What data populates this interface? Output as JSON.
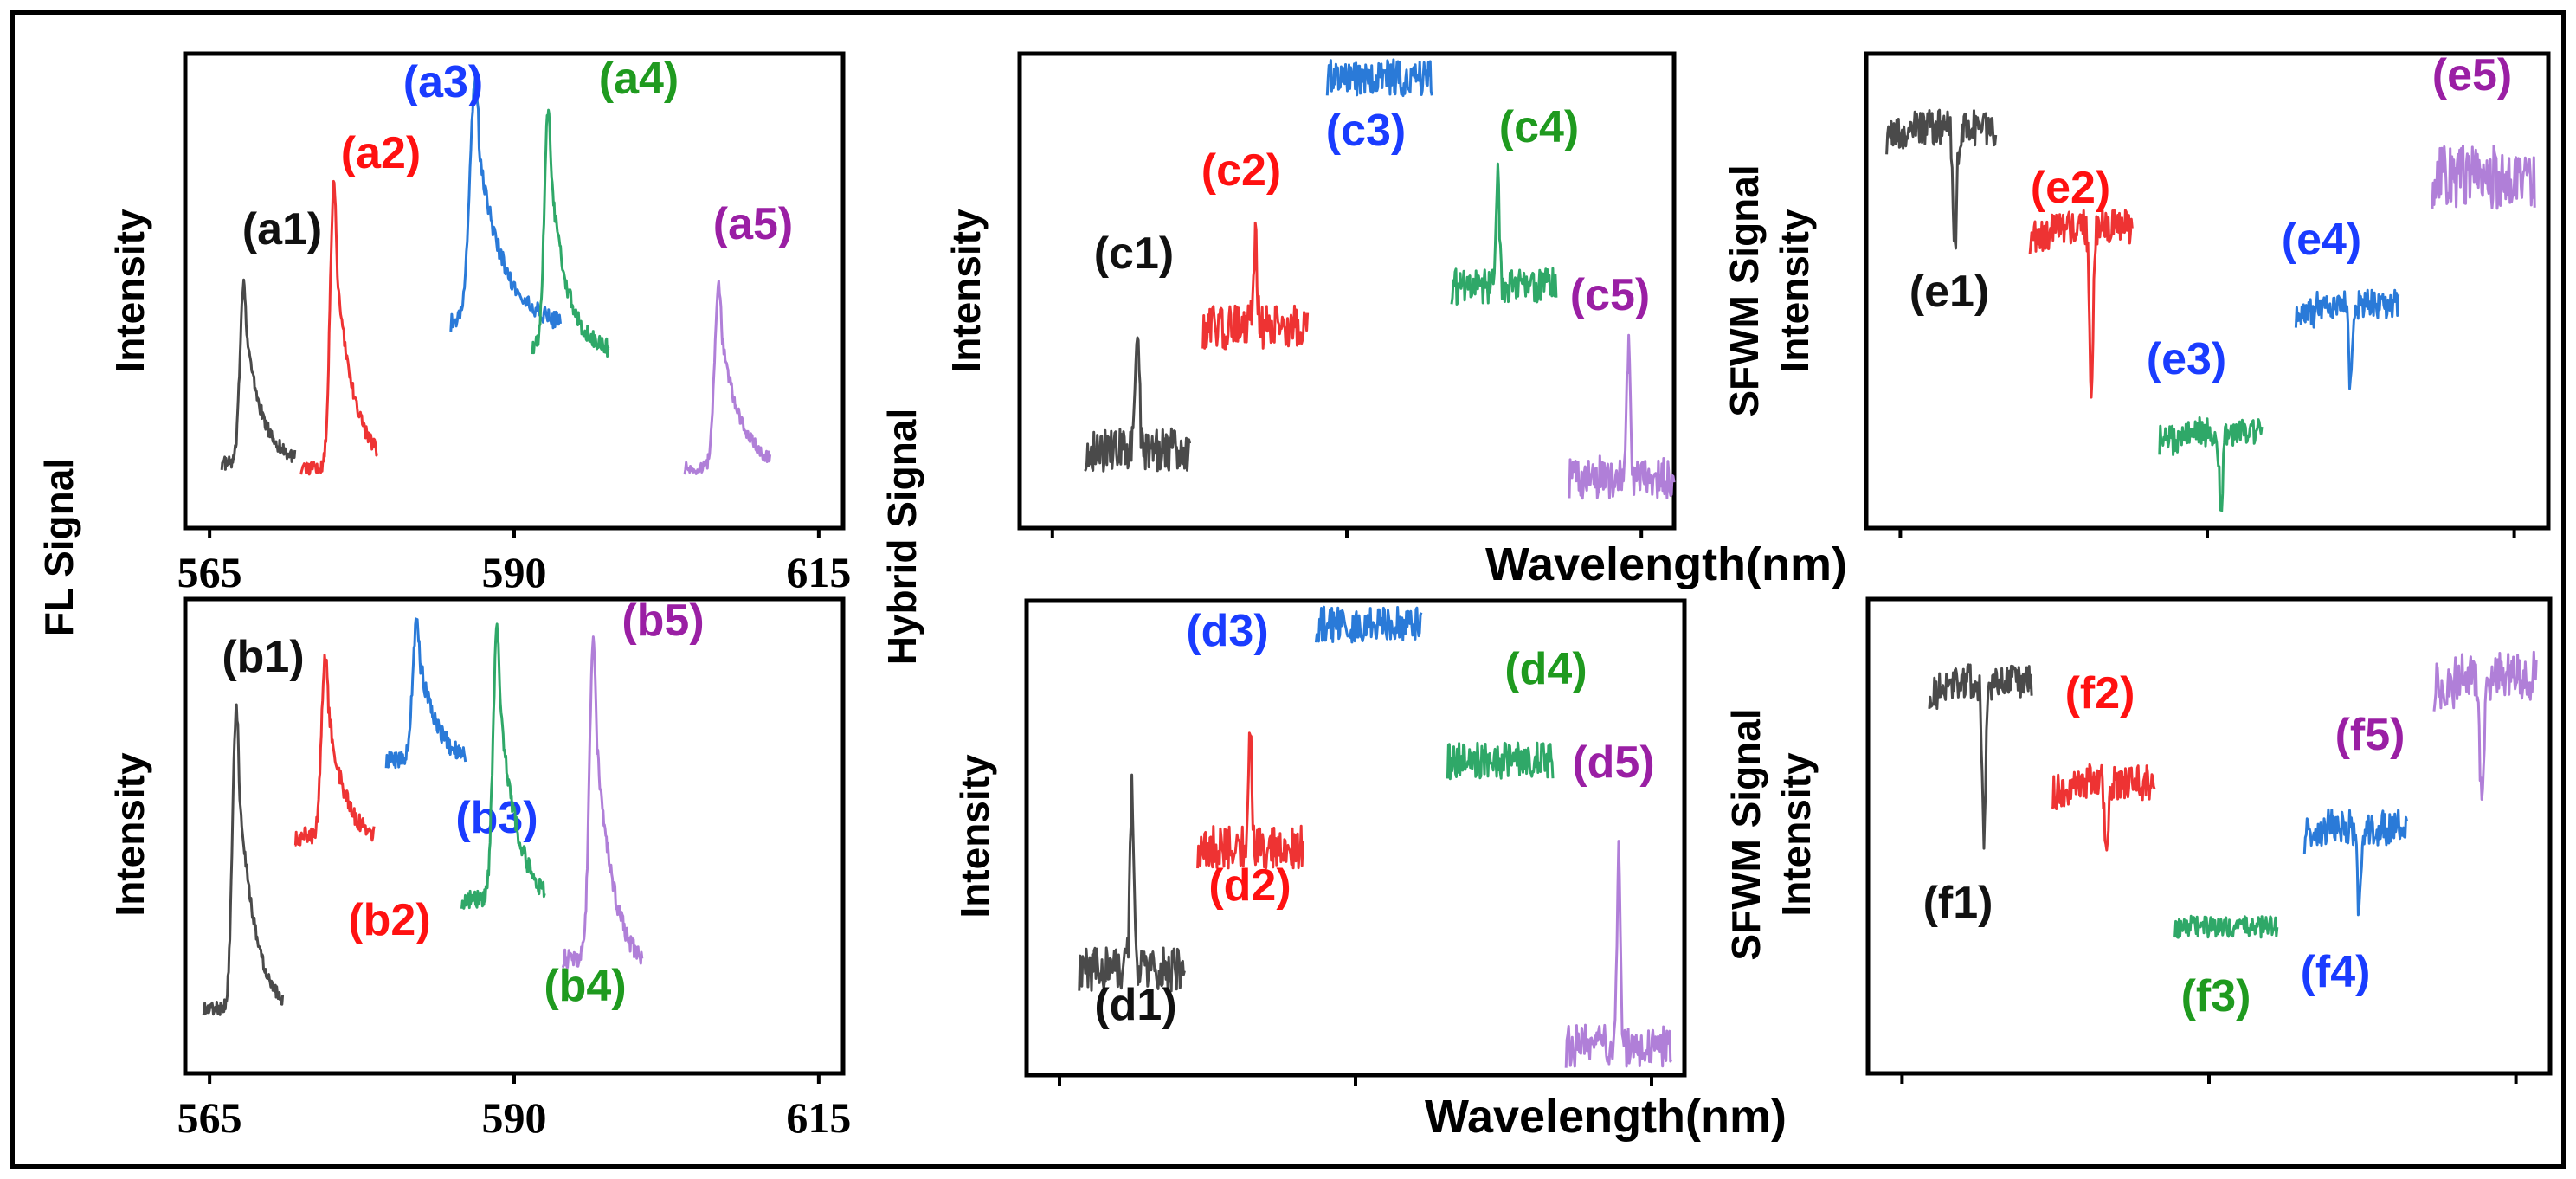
{
  "figure": {
    "fl_signal_label": "FL Signal",
    "hybrid_signal_label": "Hybrid Signal",
    "colors": {
      "black": "#4a4a4a",
      "red": "#ee3333",
      "blue": "#2a7ad8",
      "green": "#2fa868",
      "purple": "#b07fd8",
      "label_black": "#111111",
      "label_red": "#ff1111",
      "label_blue": "#1a3cff",
      "label_green": "#1f9a1f",
      "label_purple": "#9a1fa4"
    }
  },
  "chart_data": [
    {
      "id": "a",
      "type": "line",
      "ylabel": "Intensity",
      "xlabel": "",
      "xlim": [
        563,
        617
      ],
      "ylim": [
        0,
        1
      ],
      "xticks": [
        565,
        590,
        615
      ],
      "xtick_labels": [
        "565",
        "590",
        "615"
      ],
      "series": [
        {
          "name": "(a1)",
          "kind": "peak",
          "x_range": [
            566,
            572
          ],
          "peak_x": 567.8,
          "baseline": 0.12,
          "peak": 0.52,
          "tail": 0.12,
          "noise": 0.015,
          "label_color": "label_black",
          "color": "black"
        },
        {
          "name": "(a2)",
          "kind": "peak",
          "x_range": [
            572.5,
            578.8
          ],
          "peak_x": 575.2,
          "baseline": 0.11,
          "peak": 0.73,
          "tail": 0.11,
          "noise": 0.015,
          "label_color": "label_red",
          "color": "red"
        },
        {
          "name": "(a3)",
          "kind": "peak",
          "x_range": [
            584.8,
            593.8
          ],
          "peak_x": 586.8,
          "baseline": 0.43,
          "peak": 0.96,
          "tail": 0.42,
          "noise": 0.02,
          "label_color": "label_blue",
          "color": "blue"
        },
        {
          "name": "(a4)",
          "kind": "peak",
          "x_range": [
            591.5,
            597.8
          ],
          "peak_x": 592.8,
          "baseline": 0.38,
          "peak": 0.9,
          "tail": 0.36,
          "noise": 0.02,
          "label_color": "label_green",
          "color": "green"
        },
        {
          "name": "(a5)",
          "kind": "peak",
          "x_range": [
            604,
            611
          ],
          "peak_x": 606.8,
          "baseline": 0.11,
          "peak": 0.51,
          "tail": 0.11,
          "noise": 0.015,
          "label_color": "label_purple",
          "color": "purple"
        }
      ]
    },
    {
      "id": "b",
      "type": "line",
      "ylabel": "Intensity",
      "xlabel": "",
      "xlim": [
        563,
        617
      ],
      "ylim": [
        0,
        1
      ],
      "xticks": [
        565,
        590,
        615
      ],
      "xtick_labels": [
        "565",
        "590",
        "615"
      ],
      "series": [
        {
          "name": "(b1)",
          "kind": "peak",
          "x_range": [
            564.5,
            571
          ],
          "peak_x": 567.2,
          "baseline": 0.12,
          "peak": 0.78,
          "tail": 0.1,
          "noise": 0.015,
          "label_color": "label_black",
          "color": "black"
        },
        {
          "name": "(b2)",
          "kind": "peak",
          "x_range": [
            572,
            578.5
          ],
          "peak_x": 574.5,
          "baseline": 0.5,
          "peak": 0.9,
          "tail": 0.48,
          "noise": 0.02,
          "label_color": "label_red",
          "color": "red"
        },
        {
          "name": "(b3)",
          "kind": "peak",
          "x_range": [
            579.5,
            586
          ],
          "peak_x": 582,
          "baseline": 0.67,
          "peak": 0.98,
          "tail": 0.66,
          "noise": 0.02,
          "label_color": "label_blue",
          "color": "blue"
        },
        {
          "name": "(b4)",
          "kind": "peak",
          "x_range": [
            585.7,
            592.5
          ],
          "peak_x": 588.6,
          "baseline": 0.36,
          "peak": 0.96,
          "tail": 0.34,
          "noise": 0.02,
          "label_color": "label_green",
          "color": "green"
        },
        {
          "name": "(b5)",
          "kind": "peak",
          "x_range": [
            594,
            600.5
          ],
          "peak_x": 596.5,
          "baseline": 0.23,
          "peak": 0.93,
          "tail": 0.19,
          "noise": 0.02,
          "label_color": "label_purple",
          "color": "purple"
        }
      ]
    },
    {
      "id": "c",
      "type": "line",
      "ylabel": "Intensity",
      "xlabel": "",
      "xlim": [
        0,
        1
      ],
      "ylim": [
        0,
        1
      ],
      "xticks": [
        0.05,
        0.5,
        0.95
      ],
      "xtick_labels": [
        "",
        "",
        ""
      ],
      "series": [
        {
          "name": "(c1)",
          "kind": "spike",
          "x_range": [
            0.1,
            0.26
          ],
          "peak_x": 0.18,
          "baseline": 0.15,
          "peak": 0.43,
          "noise": 0.03,
          "label_color": "label_black",
          "color": "black"
        },
        {
          "name": "(c2)",
          "kind": "spike",
          "x_range": [
            0.28,
            0.44
          ],
          "peak_x": 0.36,
          "baseline": 0.42,
          "peak": 0.61,
          "noise": 0.03,
          "label_color": "label_red",
          "color": "red"
        },
        {
          "name": "(c3)",
          "kind": "flat",
          "x_range": [
            0.47,
            0.63
          ],
          "baseline": 0.97,
          "noise": 0.02,
          "label_color": "label_blue",
          "color": "blue"
        },
        {
          "name": "(c4)",
          "kind": "spike",
          "x_range": [
            0.66,
            0.82
          ],
          "peak_x": 0.73,
          "baseline": 0.51,
          "peak": 0.75,
          "noise": 0.025,
          "label_color": "label_green",
          "color": "green"
        },
        {
          "name": "(c5)",
          "kind": "spike",
          "x_range": [
            0.84,
            1.0
          ],
          "peak_x": 0.93,
          "baseline": 0.09,
          "peak": 0.37,
          "noise": 0.03,
          "label_color": "label_purple",
          "color": "purple"
        }
      ]
    },
    {
      "id": "d",
      "type": "line",
      "ylabel": "Intensity",
      "xlabel": "",
      "xlim": [
        0,
        1
      ],
      "ylim": [
        0,
        1
      ],
      "xticks": [
        0.05,
        0.5,
        0.95
      ],
      "xtick_labels": [
        "",
        "",
        ""
      ],
      "series": [
        {
          "name": "(d1)",
          "kind": "spike",
          "x_range": [
            0.08,
            0.24
          ],
          "peak_x": 0.16,
          "baseline": 0.21,
          "peak": 0.6,
          "noise": 0.03,
          "label_color": "label_black",
          "color": "black"
        },
        {
          "name": "(d2)",
          "kind": "spike",
          "x_range": [
            0.26,
            0.42
          ],
          "peak_x": 0.34,
          "baseline": 0.48,
          "peak": 0.71,
          "noise": 0.03,
          "label_color": "label_red",
          "color": "red"
        },
        {
          "name": "(d3)",
          "kind": "flat",
          "x_range": [
            0.44,
            0.6
          ],
          "baseline": 0.97,
          "noise": 0.02,
          "label_color": "label_blue",
          "color": "blue"
        },
        {
          "name": "(d4)",
          "kind": "flat",
          "x_range": [
            0.64,
            0.8
          ],
          "baseline": 0.67,
          "noise": 0.02,
          "label_color": "label_green",
          "color": "green"
        },
        {
          "name": "(d5)",
          "kind": "spike",
          "x_range": [
            0.82,
            0.98
          ],
          "peak_x": 0.9,
          "baseline": 0.04,
          "peak": 0.45,
          "noise": 0.03,
          "label_color": "label_purple",
          "color": "purple"
        }
      ]
    },
    {
      "id": "e",
      "type": "line",
      "ylabel": "SFWM Signal\nIntensity",
      "xlabel": "",
      "xlim": [
        0,
        1
      ],
      "ylim": [
        0,
        1
      ],
      "xticks": [
        0.05,
        0.5,
        0.95
      ],
      "xtick_labels": [
        "",
        "",
        ""
      ],
      "series": [
        {
          "name": "(e1)",
          "kind": "dip",
          "x_range": [
            0.03,
            0.19
          ],
          "peak_x": 0.13,
          "baseline": 0.86,
          "peak": 0.6,
          "noise": 0.025,
          "label_color": "label_black",
          "color": "black"
        },
        {
          "name": "(e2)",
          "kind": "dip",
          "x_range": [
            0.24,
            0.39
          ],
          "peak_x": 0.33,
          "baseline": 0.64,
          "peak": 0.29,
          "noise": 0.025,
          "label_color": "label_red",
          "color": "red"
        },
        {
          "name": "(e3)",
          "kind": "dip",
          "x_range": [
            0.43,
            0.58
          ],
          "peak_x": 0.52,
          "baseline": 0.19,
          "peak": 0.02,
          "noise": 0.02,
          "label_color": "label_blue",
          "color": "green"
        },
        {
          "name": "(e4)",
          "kind": "dip",
          "x_range": [
            0.63,
            0.78
          ],
          "peak_x": 0.71,
          "baseline": 0.47,
          "peak": 0.28,
          "noise": 0.02,
          "label_color": "label_blue",
          "color": "blue"
        },
        {
          "name": "(e5)",
          "kind": "flat",
          "x_range": [
            0.83,
            0.98
          ],
          "baseline": 0.75,
          "noise": 0.035,
          "label_color": "label_purple",
          "color": "purple"
        }
      ]
    },
    {
      "id": "f",
      "type": "line",
      "ylabel": "SFWM Signal\nIntensity",
      "xlabel": "",
      "xlim": [
        0,
        1
      ],
      "ylim": [
        0,
        1
      ],
      "xticks": [
        0.05,
        0.5,
        0.95
      ],
      "xtick_labels": [
        "",
        "",
        ""
      ],
      "series": [
        {
          "name": "(f1)",
          "kind": "dip",
          "x_range": [
            0.09,
            0.24
          ],
          "peak_x": 0.17,
          "baseline": 0.84,
          "peak": 0.5,
          "noise": 0.025,
          "label_color": "label_black",
          "color": "black"
        },
        {
          "name": "(f2)",
          "kind": "dip",
          "x_range": [
            0.27,
            0.42
          ],
          "peak_x": 0.35,
          "baseline": 0.62,
          "peak": 0.43,
          "noise": 0.025,
          "label_color": "label_red",
          "color": "red"
        },
        {
          "name": "(f3)",
          "kind": "flat",
          "x_range": [
            0.45,
            0.6
          ],
          "baseline": 0.3,
          "noise": 0.012,
          "label_color": "label_green",
          "color": "green"
        },
        {
          "name": "(f4)",
          "kind": "dip",
          "x_range": [
            0.64,
            0.79
          ],
          "peak_x": 0.72,
          "baseline": 0.52,
          "peak": 0.33,
          "noise": 0.025,
          "label_color": "label_blue",
          "color": "blue"
        },
        {
          "name": "(f5)",
          "kind": "dip",
          "x_range": [
            0.83,
            0.98
          ],
          "peak_x": 0.9,
          "baseline": 0.85,
          "peak": 0.55,
          "noise": 0.035,
          "label_color": "label_purple",
          "color": "purple"
        }
      ]
    },
    {
      "id": "shared_axes",
      "type": "line",
      "x_label_top": "Wavelength(nm)",
      "x_label_bottom": "Wavelength(nm)"
    }
  ]
}
